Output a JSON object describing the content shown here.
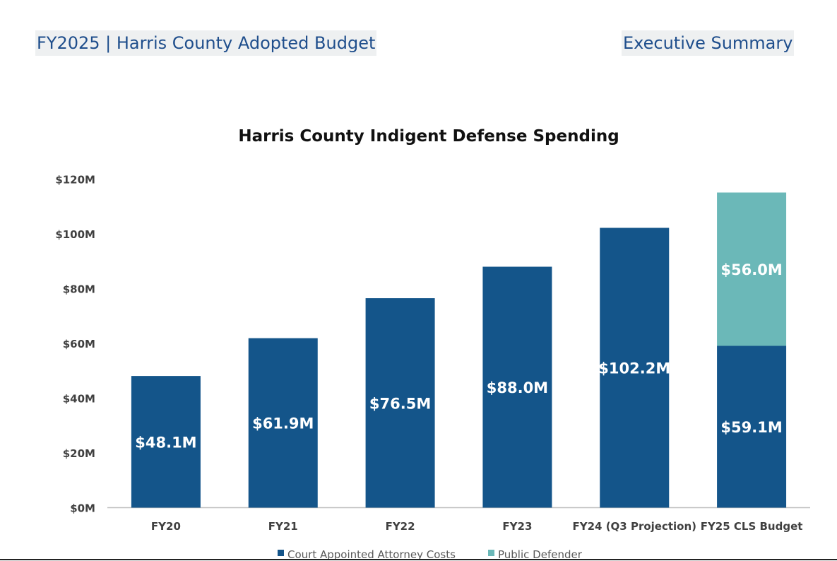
{
  "header": {
    "left_title": "FY2025 | Harris County Adopted Budget",
    "right_title": "Executive Summary"
  },
  "colors": {
    "court": "#14558a",
    "defender": "#6bb8b8",
    "header_text": "#1f4e8c",
    "axis_text": "#404040"
  },
  "chart_data": {
    "type": "bar",
    "stacked": true,
    "title": "Harris County Indigent Defense Spending",
    "xlabel": "",
    "ylabel": "",
    "ylim": [
      0,
      120
    ],
    "yticks": [
      0,
      20,
      40,
      60,
      80,
      100,
      120
    ],
    "ytick_labels": [
      "$0M",
      "$20M",
      "$40M",
      "$60M",
      "$80M",
      "$100M",
      "$120M"
    ],
    "categories": [
      "FY20",
      "FY21",
      "FY22",
      "FY23",
      "FY24 (Q3 Projection)",
      "FY25 CLS Budget"
    ],
    "series": [
      {
        "name": "Court Appointed Attorney Costs",
        "values": [
          48.1,
          61.9,
          76.5,
          88.0,
          102.2,
          59.1
        ],
        "labels": [
          "$48.1M",
          "$61.9M",
          "$76.5M",
          "$88.0M",
          "$102.2M",
          "$59.1M"
        ]
      },
      {
        "name": "Public Defender",
        "values": [
          0,
          0,
          0,
          0,
          0,
          56.0
        ],
        "labels": [
          "",
          "",
          "",
          "",
          "",
          "$56.0M"
        ]
      }
    ],
    "legend_position": "bottom-center"
  }
}
